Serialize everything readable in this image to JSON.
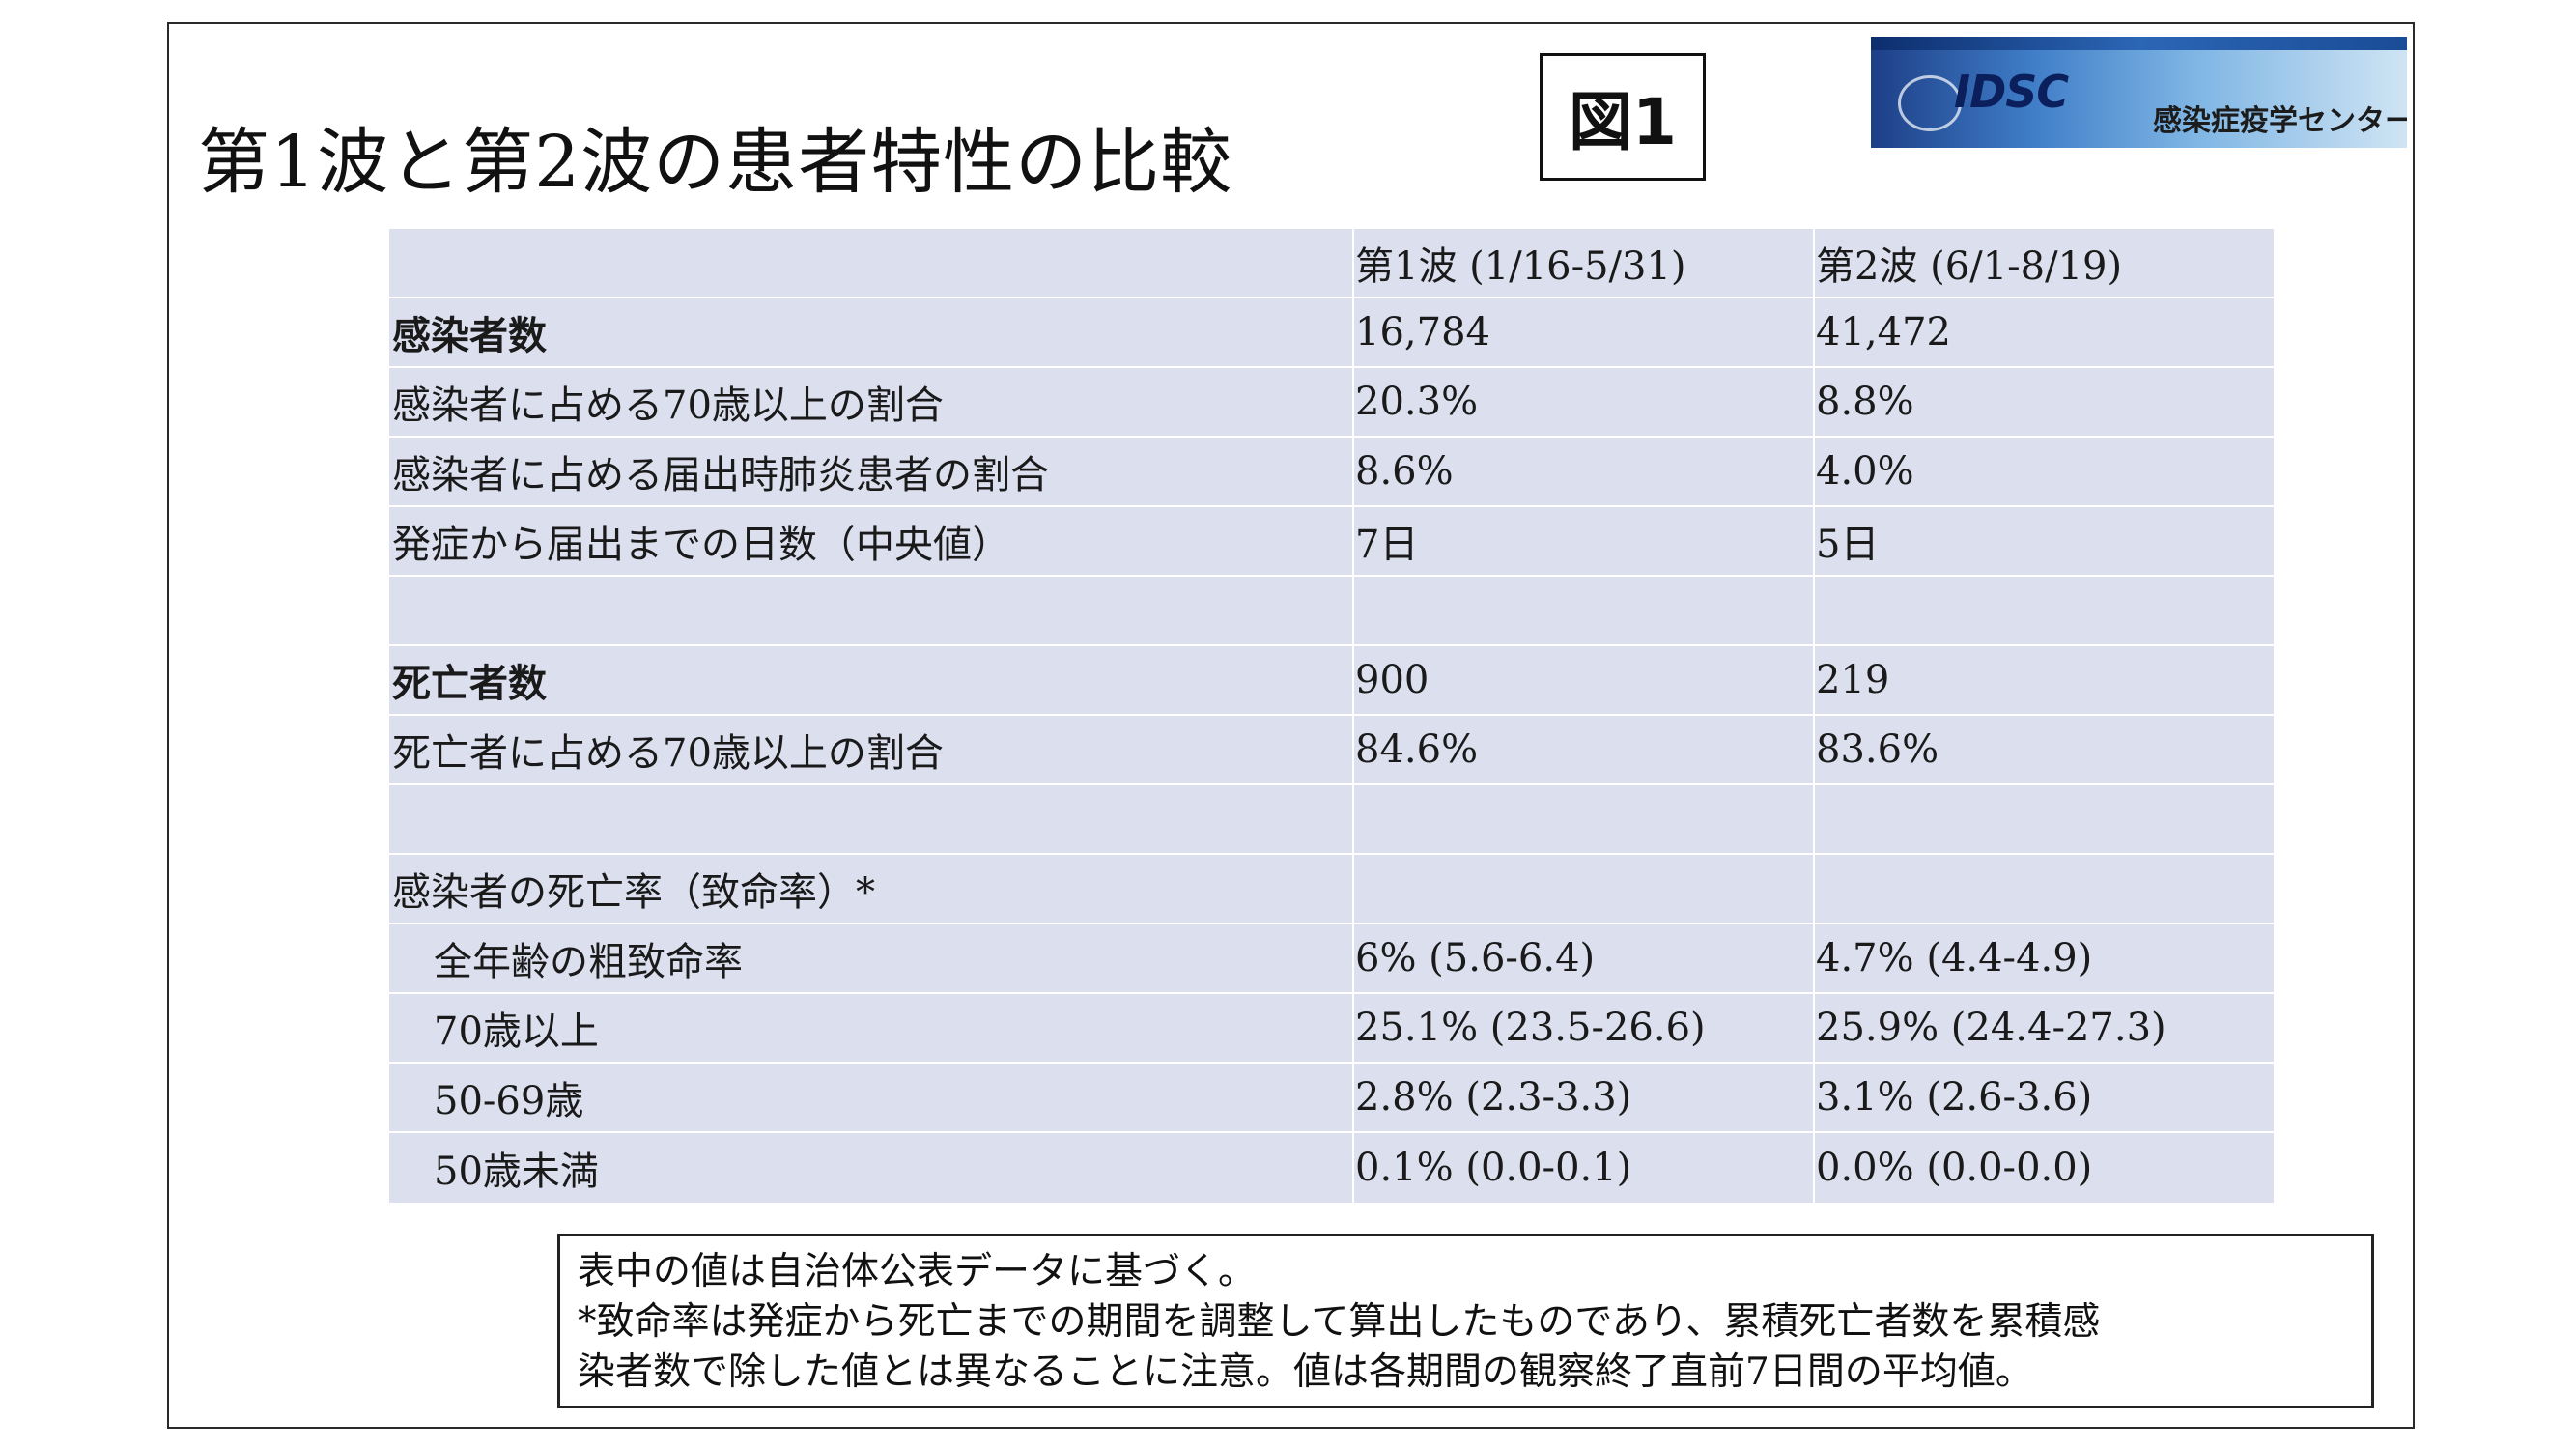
{
  "title": "第1波と第2波の患者特性の比較",
  "figure_label": "図1",
  "logo": {
    "brand": "IDSC",
    "name": "感染症疫学センター"
  },
  "table": {
    "header": [
      "",
      "第1波 (1/16-5/31)",
      "第2波 (6/1-8/19)"
    ],
    "rows": [
      {
        "label": "感染者数",
        "wave1": "16,784",
        "wave2": "41,472"
      },
      {
        "label": "感染者に占める70歳以上の割合",
        "wave1": "20.3%",
        "wave2": "8.8%"
      },
      {
        "label": "感染者に占める届出時肺炎患者の割合",
        "wave1": "8.6%",
        "wave2": "4.0%"
      },
      {
        "label": "発症から届出までの日数（中央値）",
        "wave1": "7日",
        "wave2": "5日"
      },
      {
        "label": "",
        "wave1": "",
        "wave2": ""
      },
      {
        "label": "死亡者数",
        "wave1": "900",
        "wave2": "219"
      },
      {
        "label": "死亡者に占める70歳以上の割合",
        "wave1": "84.6%",
        "wave2": "83.6%"
      },
      {
        "label": "",
        "wave1": "",
        "wave2": ""
      },
      {
        "label": "感染者の死亡率（致命率）*",
        "wave1": "",
        "wave2": ""
      },
      {
        "label": "全年齢の粗致命率",
        "wave1": "6% (5.6-6.4)",
        "wave2": "4.7% (4.4-4.9)"
      },
      {
        "label": "70歳以上",
        "wave1": "25.1% (23.5-26.6)",
        "wave2": "25.9% (24.4-27.3)"
      },
      {
        "label": "50-69歳",
        "wave1": "2.8% (2.3-3.3)",
        "wave2": "3.1% (2.6-3.6)"
      },
      {
        "label": "50歳未満",
        "wave1": "0.1% (0.0-0.1)",
        "wave2": "0.0% (0.0-0.0)"
      }
    ]
  },
  "note": {
    "line1": "表中の値は自治体公表データに基づく。",
    "line2": "*致命率は発症から死亡までの期間を調整して算出したものであり、累積死亡者数を累積感",
    "line3": "染者数で除した値とは異なることに注意。値は各期間の観察終了直前7日間の平均値。"
  }
}
